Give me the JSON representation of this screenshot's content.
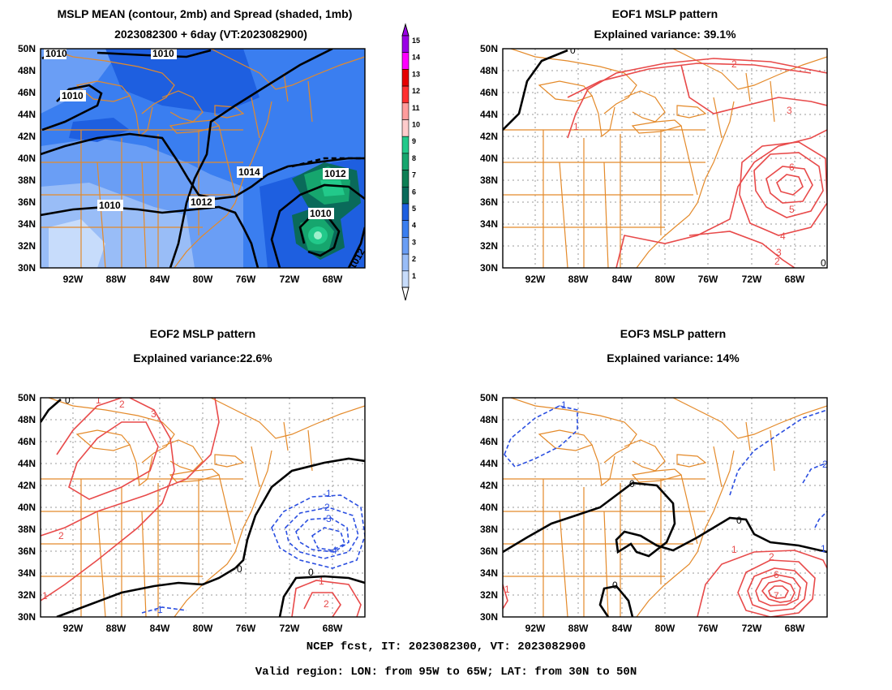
{
  "panels": {
    "mean": {
      "title1": "MSLP MEAN (contour, 2mb) and Spread (shaded, 1mb)",
      "title2": "2023082300 + 6day (VT:2023082900)"
    },
    "eof1": {
      "title1": "EOF1 MSLP pattern",
      "title2": "Explained variance: 39.1%"
    },
    "eof2": {
      "title1": "EOF2 MSLP pattern",
      "title2": "Explained variance:22.6%"
    },
    "eof3": {
      "title1": "EOF3 MSLP pattern",
      "title2": "Explained variance: 14%"
    }
  },
  "axes": {
    "lat_labels": [
      "50N",
      "48N",
      "46N",
      "44N",
      "42N",
      "40N",
      "38N",
      "36N",
      "34N",
      "32N",
      "30N"
    ],
    "lon_labels": [
      "92W",
      "88W",
      "84W",
      "80W",
      "76W",
      "72W",
      "68W"
    ]
  },
  "colorbar": {
    "labels": [
      "15",
      "14",
      "13",
      "12",
      "11",
      "10",
      "9",
      "8",
      "7",
      "6",
      "5",
      "4",
      "3",
      "2",
      "1"
    ],
    "colors": [
      "#9a00e6",
      "#ff00ff",
      "#e60000",
      "#ff3030",
      "#ff9d9d",
      "#ffcccc",
      "#22c98a",
      "#16a66e",
      "#0e7f55",
      "#0a6a5a",
      "#1e5fe0",
      "#3a7ef0",
      "#6a9ef5",
      "#99bdf7",
      "#c7dcfb"
    ]
  },
  "contour_labels": {
    "mean": [
      "1010",
      "1010",
      "1010",
      "1014",
      "1012",
      "1012",
      "1010",
      "1012"
    ],
    "eof1": [
      "0",
      "2",
      "1",
      "3",
      "6",
      "5",
      "4",
      "3",
      "2",
      "0"
    ],
    "eof2": [
      "0",
      "1",
      "2",
      "3",
      "2",
      "-1",
      "-2",
      "-3",
      "-4",
      "0",
      "0",
      "1",
      "2",
      "-1",
      "1"
    ],
    "eof3": [
      "-1",
      "-2",
      "0",
      "0",
      "0",
      "1",
      "2",
      "6",
      "7",
      "0",
      "1",
      "1"
    ]
  },
  "footer": {
    "line1": "NCEP fcst, IT: 2023082300, VT: 2023082900",
    "line2": "Valid region: LON: from 95W to 65W; LAT: from 30N to 50N"
  }
}
